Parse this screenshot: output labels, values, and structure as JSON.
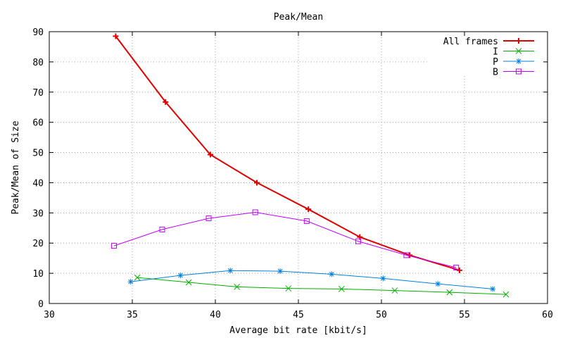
{
  "chart_data": {
    "type": "line",
    "title": "Peak/Mean",
    "xlabel": "Average bit rate [kbit/s]",
    "ylabel": "Peak/Mean of Size",
    "xlim": [
      30,
      60
    ],
    "ylim": [
      0,
      90
    ],
    "xticks": [
      30,
      35,
      40,
      45,
      50,
      55,
      60
    ],
    "yticks": [
      0,
      10,
      20,
      30,
      40,
      50,
      60,
      70,
      80,
      90
    ],
    "grid": true,
    "legend_position": "top-right",
    "series": [
      {
        "name": "All frames",
        "color": "#e00000",
        "marker": "plus",
        "line_width": "thick",
        "x": [
          34.0,
          37.0,
          39.7,
          42.5,
          45.6,
          48.7,
          51.7,
          54.7
        ],
        "y": [
          88.5,
          66.7,
          49.3,
          40.0,
          31.2,
          22.0,
          16.0,
          11.0
        ]
      },
      {
        "name": "I",
        "color": "#00b000",
        "marker": "x",
        "line_width": "thin",
        "x": [
          35.3,
          38.4,
          41.3,
          44.4,
          47.6,
          50.8,
          54.1,
          57.5
        ],
        "y": [
          8.6,
          7.0,
          5.5,
          5.0,
          4.8,
          4.3,
          3.7,
          3.0
        ]
      },
      {
        "name": "P",
        "color": "#0080e0",
        "marker": "star",
        "line_width": "thin",
        "x": [
          34.9,
          37.9,
          40.9,
          43.9,
          47.0,
          50.1,
          53.4,
          56.7
        ],
        "y": [
          7.2,
          9.3,
          10.9,
          10.7,
          9.7,
          8.3,
          6.5,
          4.8
        ]
      },
      {
        "name": "B",
        "color": "#c000ff",
        "marker": "square",
        "line_width": "thin",
        "x": [
          33.9,
          36.8,
          39.6,
          42.4,
          45.5,
          48.6,
          51.5,
          54.5
        ],
        "y": [
          19.1,
          24.5,
          28.2,
          30.2,
          27.3,
          20.6,
          16.0,
          11.9
        ]
      }
    ]
  }
}
